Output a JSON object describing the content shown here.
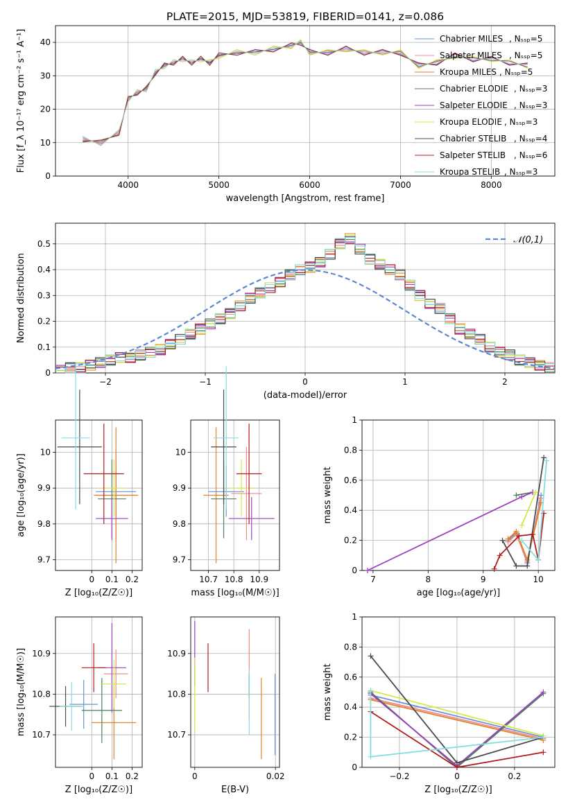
{
  "figure_title": "PLATE=2015, MJD=53819, FIBERID=0141, z=0.086",
  "models": [
    {
      "name": "Chabrier MILES",
      "nssp": 5,
      "color": "#6a8fd6"
    },
    {
      "name": "Salpeter MILES",
      "nssp": 5,
      "color": "#f08a8a"
    },
    {
      "name": "Kroupa MILES",
      "nssp": 5,
      "color": "#e0822a"
    },
    {
      "name": "Chabrier ELODIE",
      "nssp": 3,
      "color": "#4f7f5a"
    },
    {
      "name": "Salpeter ELODIE",
      "nssp": 3,
      "color": "#9b3fbf"
    },
    {
      "name": "Kroupa ELODIE",
      "nssp": 3,
      "color": "#d4e84a"
    },
    {
      "name": "Chabrier STELIB",
      "nssp": 4,
      "color": "#4a4a4a"
    },
    {
      "name": "Salpeter STELIB",
      "nssp": 6,
      "color": "#b01c1c"
    },
    {
      "name": "Kroupa STELIB",
      "nssp": 3,
      "color": "#86dde0"
    }
  ],
  "chart_data": [
    {
      "id": "spectrum",
      "type": "line",
      "xlabel": "wavelength [Angstrom, rest frame]",
      "ylabel": "Flux [f_λ 10⁻¹⁷ erg cm⁻² s⁻¹ A⁻¹]",
      "xlim": [
        3200,
        8700
      ],
      "ylim": [
        0,
        45
      ],
      "xticks": [
        4000,
        5000,
        6000,
        7000,
        8000
      ],
      "yticks": [
        0,
        10,
        20,
        30,
        40
      ],
      "legend_position": "top-right",
      "x": [
        3500,
        3700,
        3900,
        4000,
        4100,
        4200,
        4300,
        4400,
        4500,
        4600,
        4700,
        4800,
        4900,
        5000,
        5200,
        5400,
        5600,
        5800,
        5900,
        6000,
        6200,
        6400,
        6600,
        6800,
        7000,
        7200,
        7400,
        7600,
        7800,
        8000,
        8200,
        8400
      ],
      "y": [
        11,
        10,
        13,
        23,
        25,
        26,
        31,
        33,
        34,
        35,
        34,
        35,
        34,
        36,
        37,
        37,
        38,
        39,
        40,
        37,
        37,
        38,
        37,
        37,
        37,
        33,
        34,
        36,
        35,
        35,
        34,
        33
      ]
    },
    {
      "id": "residual-histogram",
      "type": "bar",
      "xlabel": "(data-model)/error",
      "ylabel": "Normed distribution",
      "xlim": [
        -2.5,
        2.5
      ],
      "ylim": [
        0,
        0.58
      ],
      "xticks": [
        -2,
        -1,
        0,
        1,
        2
      ],
      "yticks": [
        0.0,
        0.1,
        0.2,
        0.3,
        0.4,
        0.5
      ],
      "grid": true,
      "legend": [
        "𝒩(0,1)"
      ],
      "legend_position": "top-right",
      "reference_curve": "normal(0,1)",
      "bin_width": 0.1,
      "bins_start": -2.5,
      "values": [
        0.01,
        0.02,
        0.02,
        0.03,
        0.04,
        0.05,
        0.06,
        0.06,
        0.07,
        0.08,
        0.09,
        0.11,
        0.13,
        0.15,
        0.17,
        0.19,
        0.21,
        0.23,
        0.26,
        0.29,
        0.31,
        0.33,
        0.35,
        0.38,
        0.4,
        0.41,
        0.43,
        0.46,
        0.5,
        0.52,
        0.48,
        0.44,
        0.42,
        0.4,
        0.38,
        0.34,
        0.3,
        0.27,
        0.25,
        0.21,
        0.17,
        0.15,
        0.13,
        0.1,
        0.08,
        0.07,
        0.05,
        0.04,
        0.03,
        0.02
      ]
    },
    {
      "id": "age-vs-z",
      "type": "scatter",
      "xlabel": "Z [log₁₀(Z/Z☉)]",
      "ylabel": "age  [log₁₀(age/yr)]",
      "xlim": [
        -0.18,
        0.25
      ],
      "ylim": [
        9.67,
        10.09
      ],
      "xticks": [
        0.0,
        0.1,
        0.2
      ],
      "yticks": [
        9.7,
        9.8,
        9.9,
        10.0
      ],
      "points": [
        {
          "x": 0.12,
          "y": 9.89,
          "xerr": 0.1,
          "yerr": 0.07
        },
        {
          "x": 0.12,
          "y": 9.88,
          "xerr": 0.1,
          "yerr": 0.13
        },
        {
          "x": 0.12,
          "y": 9.88,
          "xerr": 0.11,
          "yerr": 0.19
        },
        {
          "x": 0.1,
          "y": 9.87,
          "xerr": 0.07,
          "yerr": 0.11
        },
        {
          "x": 0.1,
          "y": 9.815,
          "xerr": 0.08,
          "yerr": 0.06
        },
        {
          "x": 0.11,
          "y": 9.9,
          "xerr": 0.06,
          "yerr": 0.08
        },
        {
          "x": -0.06,
          "y": 10.015,
          "xerr": 0.11,
          "yerr": 0.16
        },
        {
          "x": 0.06,
          "y": 9.94,
          "xerr": 0.1,
          "yerr": 0.14
        },
        {
          "x": -0.08,
          "y": 10.04,
          "xerr": 0.07,
          "yerr": 0.2
        }
      ]
    },
    {
      "id": "age-vs-mass",
      "type": "scatter",
      "xlabel": "mass [log₁₀(M/M☉)]",
      "ylabel": "",
      "xlim": [
        10.63,
        10.98
      ],
      "ylim": [
        9.67,
        10.09
      ],
      "xticks": [
        10.7,
        10.8,
        10.9
      ],
      "yticks": [
        9.7,
        9.8,
        9.9,
        10.0
      ],
      "points": [
        {
          "x": 10.77,
          "y": 9.89,
          "xerr": 0.07,
          "yerr": 0.07
        },
        {
          "x": 10.85,
          "y": 9.885,
          "xerr": 0.06,
          "yerr": 0.13
        },
        {
          "x": 10.73,
          "y": 9.88,
          "xerr": 0.05,
          "yerr": 0.19
        },
        {
          "x": 10.76,
          "y": 9.87,
          "xerr": 0.05,
          "yerr": 0.11
        },
        {
          "x": 10.87,
          "y": 9.815,
          "xerr": 0.09,
          "yerr": 0.06
        },
        {
          "x": 10.83,
          "y": 9.9,
          "xerr": 0.05,
          "yerr": 0.08
        },
        {
          "x": 10.76,
          "y": 10.015,
          "xerr": 0.05,
          "yerr": 0.16
        },
        {
          "x": 10.86,
          "y": 9.94,
          "xerr": 0.05,
          "yerr": 0.14
        },
        {
          "x": 10.77,
          "y": 10.04,
          "xerr": 0.05,
          "yerr": 0.2
        }
      ]
    },
    {
      "id": "mass-weight-vs-age",
      "type": "line",
      "xlabel": "age  [log₁₀(age/yr)]",
      "ylabel": "mass weight",
      "xlim": [
        6.8,
        10.3
      ],
      "ylim": [
        0,
        1
      ],
      "xticks": [
        7,
        8,
        9,
        10
      ],
      "yticks": [
        0.0,
        0.2,
        0.4,
        0.6,
        0.8,
        1.0
      ],
      "grid": true,
      "series": [
        {
          "x": [
            9.45,
            9.6,
            9.8,
            10.05
          ],
          "y": [
            0.2,
            0.25,
            0.05,
            0.5
          ]
        },
        {
          "x": [
            9.45,
            9.6,
            9.8,
            10.05
          ],
          "y": [
            0.19,
            0.24,
            0.06,
            0.48
          ]
        },
        {
          "x": [
            9.45,
            9.6,
            9.8,
            10.05
          ],
          "y": [
            0.21,
            0.26,
            0.07,
            0.45
          ]
        },
        {
          "x": [
            9.6,
            9.9
          ],
          "y": [
            0.5,
            0.52
          ]
        },
        {
          "x": [
            6.9,
            9.7,
            9.9
          ],
          "y": [
            0.0,
            0.49,
            0.52
          ]
        },
        {
          "x": [
            9.7,
            9.95
          ],
          "y": [
            0.3,
            0.52
          ]
        },
        {
          "x": [
            9.35,
            9.6,
            9.8,
            10.1
          ],
          "y": [
            0.2,
            0.03,
            0.03,
            0.75
          ]
        },
        {
          "x": [
            9.2,
            9.3,
            9.65,
            9.9,
            10.0,
            10.1
          ],
          "y": [
            0.01,
            0.1,
            0.23,
            0.24,
            0.07,
            0.38
          ]
        },
        {
          "x": [
            9.7,
            10.0,
            10.15
          ],
          "y": [
            0.2,
            0.07,
            0.73
          ]
        }
      ]
    },
    {
      "id": "mass-vs-z",
      "type": "scatter",
      "xlabel": "Z [log₁₀(Z/Z☉)]",
      "ylabel": "mass [log₁₀(M/M☉)]",
      "xlim": [
        -0.18,
        0.25
      ],
      "ylim": [
        10.62,
        10.99
      ],
      "xticks": [
        0.0,
        0.1,
        0.2
      ],
      "yticks": [
        10.7,
        10.8,
        10.9
      ],
      "points": [
        {
          "x": -0.04,
          "y": 10.775,
          "xerr": 0.07,
          "yerr": 0.06
        },
        {
          "x": 0.12,
          "y": 10.85,
          "xerr": 0.06,
          "yerr": 0.06
        },
        {
          "x": 0.11,
          "y": 10.73,
          "xerr": 0.11,
          "yerr": 0.09
        },
        {
          "x": 0.05,
          "y": 10.76,
          "xerr": 0.1,
          "yerr": 0.08
        },
        {
          "x": 0.1,
          "y": 10.865,
          "xerr": 0.07,
          "yerr": 0.11
        },
        {
          "x": 0.11,
          "y": 10.825,
          "xerr": 0.06,
          "yerr": 0.06
        },
        {
          "x": -0.13,
          "y": 10.77,
          "xerr": 0.08,
          "yerr": 0.05
        },
        {
          "x": 0.01,
          "y": 10.865,
          "xerr": 0.06,
          "yerr": 0.06
        },
        {
          "x": -0.1,
          "y": 10.77,
          "xerr": 0.06,
          "yerr": 0.06
        }
      ]
    },
    {
      "id": "mass-vs-ebv",
      "type": "scatter",
      "xlabel": "E(B-V)",
      "ylabel": "",
      "xlim": [
        -0.001,
        0.021
      ],
      "ylim": [
        10.62,
        10.99
      ],
      "xticks": [
        0.0,
        0.02
      ],
      "yticks": [
        10.7,
        10.8,
        10.9
      ],
      "points": [
        {
          "x": 0.0199,
          "y": 10.75,
          "yerr": 0.1
        },
        {
          "x": 0.0135,
          "y": 10.85,
          "yerr": 0.11
        },
        {
          "x": 0.0165,
          "y": 10.74,
          "yerr": 0.1
        },
        {
          "x": 0.0135,
          "y": 10.82,
          "yerr": 0.03
        },
        {
          "x": 0.0,
          "y": 10.9,
          "yerr": 0.08
        },
        {
          "x": 0.0,
          "y": 10.8,
          "yerr": 0.09
        },
        {
          "x": 0.0135,
          "y": 10.82,
          "yerr": 0.02
        },
        {
          "x": 0.0033,
          "y": 10.865,
          "yerr": 0.06
        },
        {
          "x": 0.0135,
          "y": 10.78,
          "yerr": 0.08
        }
      ]
    },
    {
      "id": "mass-weight-vs-z",
      "type": "line",
      "xlabel": "Z [log₁₀(Z/Z☉)]",
      "ylabel": "mass weight",
      "xlim": [
        -0.33,
        0.34
      ],
      "ylim": [
        0,
        1
      ],
      "xticks": [
        -0.2,
        0.0,
        0.2
      ],
      "yticks": [
        0.0,
        0.2,
        0.4,
        0.6,
        0.8,
        1.0
      ],
      "grid": true,
      "series": [
        {
          "x": [
            -0.3,
            0.3
          ],
          "y": [
            0.48,
            0.2
          ]
        },
        {
          "x": [
            -0.3,
            0.3
          ],
          "y": [
            0.46,
            0.19
          ]
        },
        {
          "x": [
            -0.3,
            0.3
          ],
          "y": [
            0.45,
            0.18
          ]
        },
        {
          "x": [
            -0.3,
            0.0,
            0.3
          ],
          "y": [
            0.5,
            0.0,
            0.49
          ]
        },
        {
          "x": [
            -0.3,
            0.0,
            0.3
          ],
          "y": [
            0.49,
            0.01,
            0.5
          ]
        },
        {
          "x": [
            -0.3,
            0.3
          ],
          "y": [
            0.51,
            0.21
          ]
        },
        {
          "x": [
            -0.3,
            0.0,
            0.3
          ],
          "y": [
            0.74,
            0.03,
            0.2
          ]
        },
        {
          "x": [
            -0.3,
            0.0,
            0.3
          ],
          "y": [
            0.37,
            0.0,
            0.1
          ]
        },
        {
          "x": [
            -0.3,
            -0.3,
            0.3
          ],
          "y": [
            0.51,
            0.07,
            0.2
          ]
        }
      ]
    }
  ]
}
